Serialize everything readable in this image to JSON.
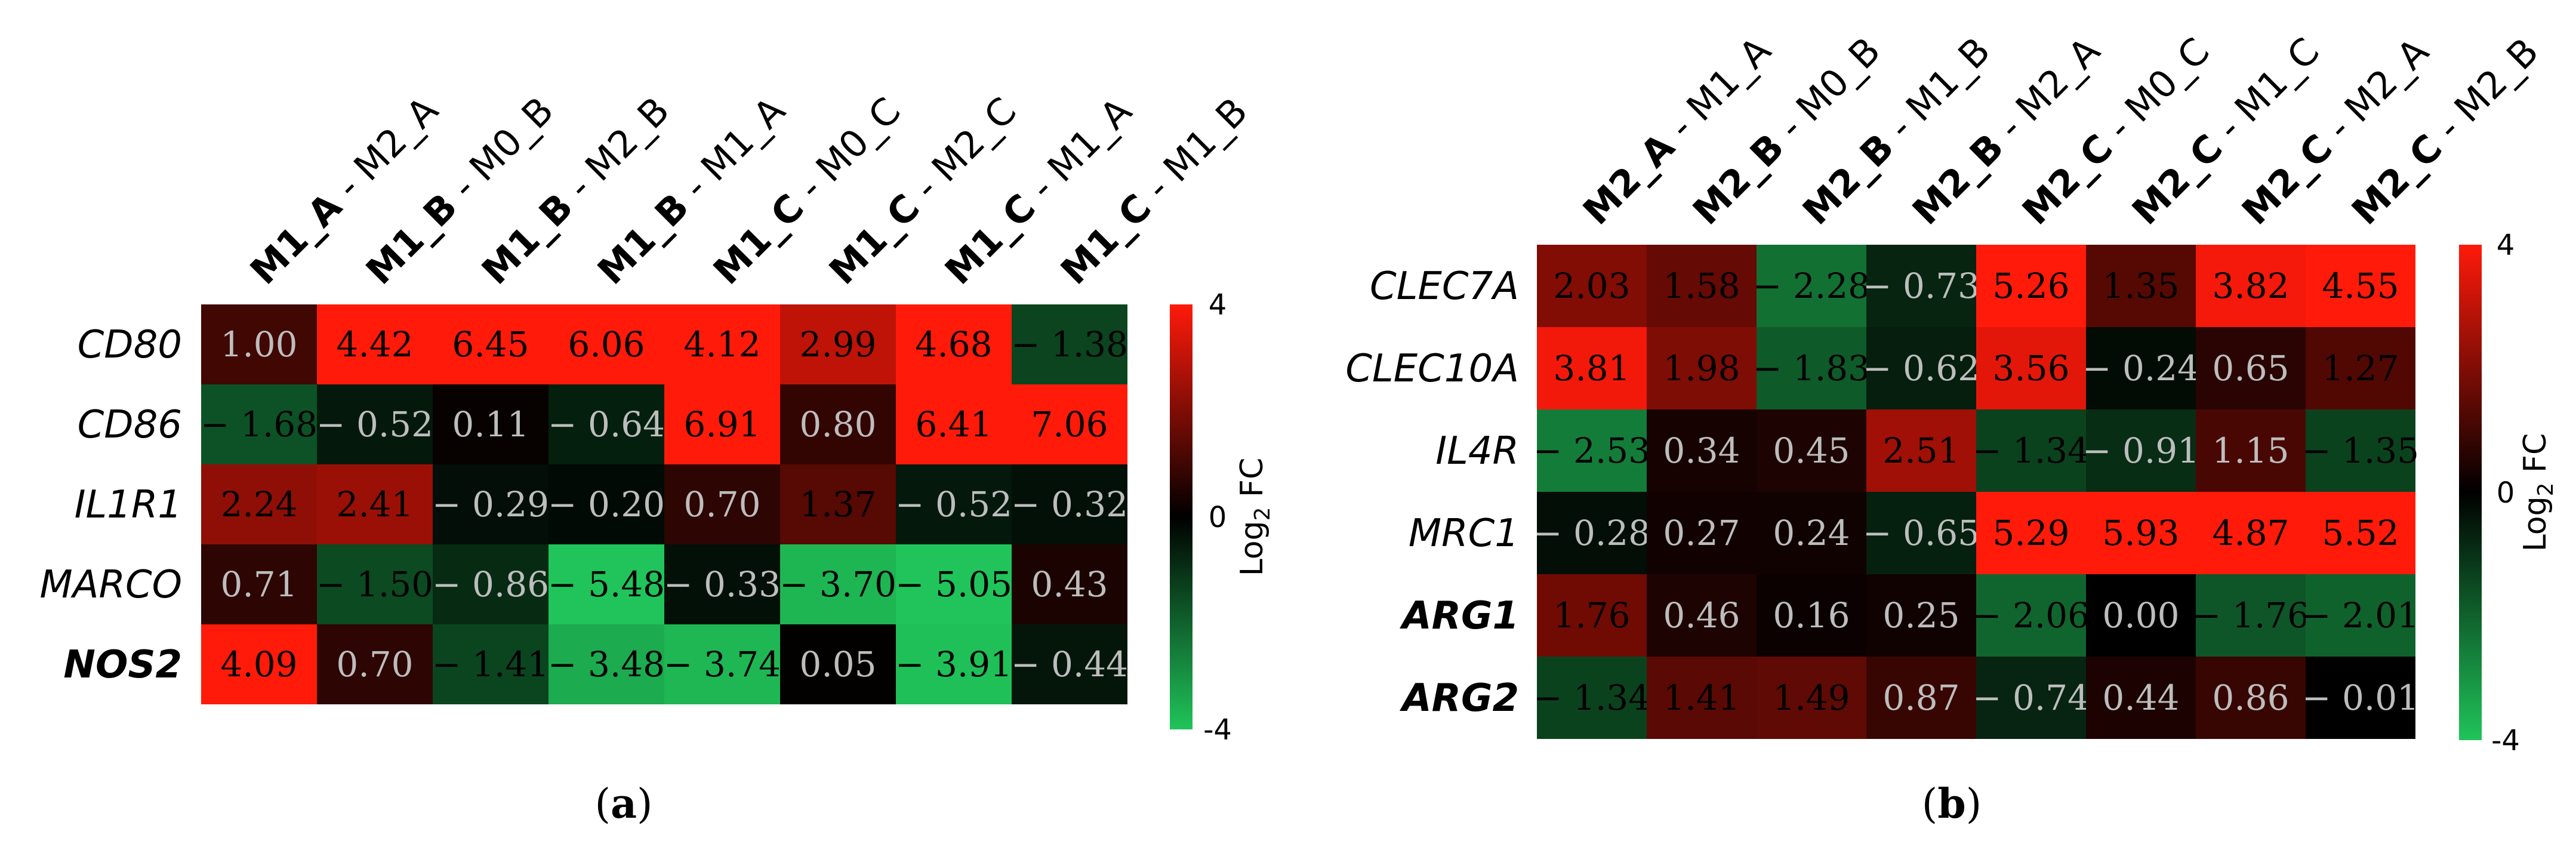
{
  "colors": {
    "low": "#20c45a",
    "mid": "#000000",
    "high": "#ff1a0a",
    "text_light": "#bdbdbd",
    "text_dark": "#000000"
  },
  "chart_data": [
    {
      "type": "heatmap",
      "panel_label": "(a)",
      "columns": [
        {
          "bold": "M1_A",
          "rest": " - M2_A"
        },
        {
          "bold": "M1_B",
          "rest": " - M0_B"
        },
        {
          "bold": "M1_B",
          "rest": " - M2_B"
        },
        {
          "bold": "M1_B",
          "rest": " - M1_A"
        },
        {
          "bold": "M1_C",
          "rest": " - M0_C"
        },
        {
          "bold": "M1_C",
          "rest": " - M2_C"
        },
        {
          "bold": "M1_C",
          "rest": " - M1_A"
        },
        {
          "bold": "M1_C",
          "rest": " - M1_B"
        }
      ],
      "rows": [
        {
          "label": "CD80",
          "bold": false
        },
        {
          "label": "CD86",
          "bold": false
        },
        {
          "label": "IL1R1",
          "bold": false
        },
        {
          "label": "MARCO",
          "bold": false
        },
        {
          "label": "NOS2",
          "bold": true
        }
      ],
      "values": [
        [
          1.0,
          4.42,
          6.45,
          6.06,
          4.12,
          2.99,
          4.68,
          -1.38
        ],
        [
          -1.68,
          -0.52,
          0.11,
          -0.64,
          6.91,
          0.8,
          6.41,
          7.06
        ],
        [
          2.24,
          2.41,
          -0.29,
          -0.2,
          0.7,
          1.37,
          -0.52,
          -0.32
        ],
        [
          0.71,
          -1.5,
          -0.86,
          -5.48,
          -0.33,
          -3.7,
          -5.05,
          0.43
        ],
        [
          4.09,
          0.7,
          -1.41,
          -3.48,
          -3.74,
          0.05,
          -3.91,
          -0.44
        ]
      ],
      "value_labels": [
        [
          "1.00",
          "4.42",
          "6.45",
          "6.06",
          "4.12",
          "2.99",
          "4.68",
          "− 1.38"
        ],
        [
          "− 1.68",
          "− 0.52",
          "0.11",
          "− 0.64",
          "6.91",
          "0.80",
          "6.41",
          "7.06"
        ],
        [
          "2.24",
          "2.41",
          "− 0.29",
          "− 0.20",
          "0.70",
          "1.37",
          "− 0.52",
          "− 0.32"
        ],
        [
          "0.71",
          "− 1.50",
          "− 0.86",
          "− 5.48",
          "− 0.33",
          "− 3.70",
          "− 5.05",
          "0.43"
        ],
        [
          "4.09",
          "0.70",
          "− 1.41",
          "− 3.48",
          "− 3.74",
          "0.05",
          "− 3.91",
          "− 0.44"
        ]
      ],
      "colorbar": {
        "title": "Log₂ FC",
        "title_prefix": "Log",
        "title_sub": "2",
        "title_suffix": " FC",
        "range": [
          -4,
          4
        ],
        "ticks": [
          4,
          0,
          -4
        ],
        "tick_labels": [
          "4",
          "0",
          "-4"
        ]
      }
    },
    {
      "type": "heatmap",
      "panel_label": "(b)",
      "columns": [
        {
          "bold": "M2_A",
          "rest": " - M1_A"
        },
        {
          "bold": "M2_B",
          "rest": " - M0_B"
        },
        {
          "bold": "M2_B",
          "rest": " - M1_B"
        },
        {
          "bold": "M2_B",
          "rest": " - M2_A"
        },
        {
          "bold": "M2_C",
          "rest": " - M0_C"
        },
        {
          "bold": "M2_C",
          "rest": " - M1_C"
        },
        {
          "bold": "M2_C",
          "rest": " - M2_A"
        },
        {
          "bold": "M2_C",
          "rest": " - M2_B"
        }
      ],
      "rows": [
        {
          "label": "CLEC7A",
          "bold": false
        },
        {
          "label": "CLEC10A",
          "bold": false
        },
        {
          "label": "IL4R",
          "bold": false
        },
        {
          "label": "MRC1",
          "bold": false
        },
        {
          "label": "ARG1",
          "bold": true
        },
        {
          "label": "ARG2",
          "bold": true
        }
      ],
      "values": [
        [
          2.03,
          1.58,
          -2.28,
          -0.73,
          5.26,
          1.35,
          3.82,
          4.55
        ],
        [
          3.81,
          1.98,
          -1.83,
          -0.62,
          3.56,
          -0.24,
          0.65,
          1.27
        ],
        [
          -2.53,
          0.34,
          0.45,
          2.51,
          -1.34,
          -0.91,
          1.15,
          -1.35
        ],
        [
          -0.28,
          0.27,
          0.24,
          -0.65,
          5.29,
          5.93,
          4.87,
          5.52
        ],
        [
          1.76,
          0.46,
          0.16,
          0.25,
          -2.06,
          0.0,
          -1.76,
          -2.01
        ],
        [
          -1.34,
          1.41,
          1.49,
          0.87,
          -0.74,
          0.44,
          0.86,
          -0.01
        ]
      ],
      "value_labels": [
        [
          "2.03",
          "1.58",
          "− 2.28",
          "− 0.73",
          "5.26",
          "1.35",
          "3.82",
          "4.55"
        ],
        [
          "3.81",
          "1.98",
          "− 1.83",
          "− 0.62",
          "3.56",
          "− 0.24",
          "0.65",
          "1.27"
        ],
        [
          "− 2.53",
          "0.34",
          "0.45",
          "2.51",
          "− 1.34",
          "− 0.91",
          "1.15",
          "− 1.35"
        ],
        [
          "− 0.28",
          "0.27",
          "0.24",
          "− 0.65",
          "5.29",
          "5.93",
          "4.87",
          "5.52"
        ],
        [
          "1.76",
          "0.46",
          "0.16",
          "0.25",
          "− 2.06",
          "0.00",
          "− 1.76",
          "− 2.01"
        ],
        [
          "− 1.34",
          "1.41",
          "1.49",
          "0.87",
          "− 0.74",
          "0.44",
          "0.86",
          "− 0.01"
        ]
      ],
      "colorbar": {
        "title": "Log₂ FC",
        "title_prefix": "Log",
        "title_sub": "2",
        "title_suffix": " FC",
        "range": [
          -4,
          4
        ],
        "ticks": [
          4,
          0,
          -4
        ],
        "tick_labels": [
          "4",
          "0",
          "-4"
        ]
      }
    }
  ]
}
